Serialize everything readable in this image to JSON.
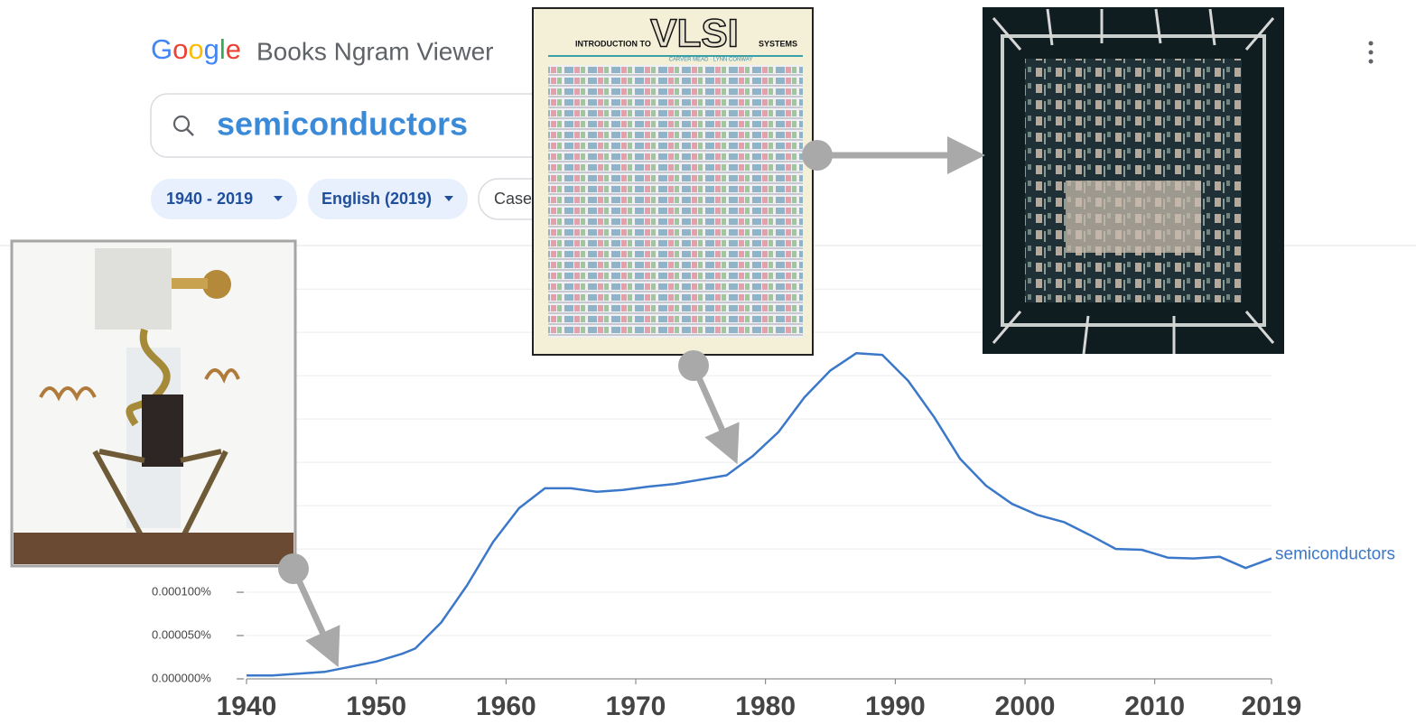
{
  "header": {
    "logo": "Google",
    "app_name": "Books Ngram Viewer",
    "search_query": "semiconductors",
    "filters": [
      "1940 - 2019",
      "English (2019)",
      "Case"
    ]
  },
  "images": {
    "book_cover": {
      "top_left": "INTRODUCTION TO",
      "title": "VLSI",
      "top_right": "SYSTEMS",
      "authors": "CARVER MEAD · LYNN CONWAY"
    }
  },
  "chart_data": {
    "type": "line",
    "x": [
      1940,
      1942,
      1944,
      1946,
      1948,
      1950,
      1952,
      1953,
      1955,
      1957,
      1959,
      1961,
      1963,
      1965,
      1967,
      1969,
      1971,
      1973,
      1975,
      1977,
      1979,
      1981,
      1983,
      1985,
      1987,
      1989,
      1991,
      1993,
      1995,
      1997,
      1999,
      2001,
      2003,
      2005,
      2007,
      2009,
      2011,
      2013,
      2015,
      2017,
      2019
    ],
    "series": [
      {
        "name": "semiconductors",
        "color": "#3b78c9",
        "values": [
          4e-06,
          4e-06,
          6e-06,
          8e-06,
          1.4e-05,
          2e-05,
          2.9e-05,
          3.5e-05,
          6.5e-05,
          0.000108,
          0.000158,
          0.000197,
          0.00022,
          0.00022,
          0.000216,
          0.000218,
          0.000222,
          0.000225,
          0.00023,
          0.000235,
          0.000257,
          0.000285,
          0.000325,
          0.000356,
          0.000376,
          0.000374,
          0.000344,
          0.000302,
          0.000254,
          0.000223,
          0.000202,
          0.000189,
          0.000181,
          0.000166,
          0.00015,
          0.000149,
          0.00014,
          0.000139,
          0.000141,
          0.000128,
          0.000139
        ]
      }
    ],
    "xlim": [
      1940,
      2019
    ],
    "xticks": [
      1940,
      1950,
      1960,
      1970,
      1980,
      1990,
      2000,
      2010,
      2019
    ],
    "ylim": [
      0,
      0.00047
    ],
    "yticks": [
      {
        "value": 0,
        "label": "0.000000%"
      },
      {
        "value": 5e-05,
        "label": "0.000050%"
      },
      {
        "value": 0.0001,
        "label": "0.000100%"
      },
      {
        "value": 0.00015,
        "label": "0.000150%"
      },
      {
        "value": 0.0002,
        "label": "0.000200%"
      },
      {
        "value": 0.00025,
        "label": "0.000250%"
      },
      {
        "value": 0.0003,
        "label": "0.000300%"
      },
      {
        "value": 0.00035,
        "label": "0.000350%"
      },
      {
        "value": 0.0004,
        "label": "0.000400%"
      },
      {
        "value": 0.00045,
        "label": "0.000450%"
      }
    ],
    "grid": true
  }
}
